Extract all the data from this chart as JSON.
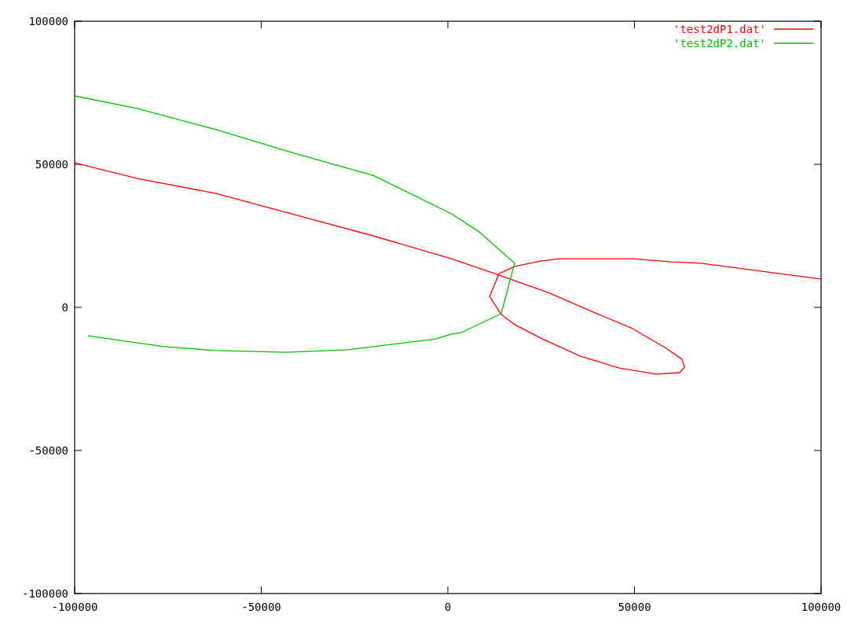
{
  "chart_data": {
    "type": "line",
    "xlim": [
      -100000,
      100000
    ],
    "ylim": [
      -100000,
      100000
    ],
    "xticks": [
      -100000,
      -50000,
      0,
      50000,
      100000
    ],
    "yticks": [
      -100000,
      -50000,
      0,
      50000,
      100000
    ],
    "legend": "top right",
    "marker": "none",
    "line_style": "solid",
    "series": [
      {
        "name": "'test2dP1.dat'",
        "color": "#ff0000",
        "x": [
          -100000,
          -83100,
          -62100,
          -41000,
          -20000,
          1000,
          13700,
          26900,
          38900,
          49500,
          58500,
          62700,
          63400,
          62100,
          55800,
          45900,
          35400,
          24800,
          17900,
          14300,
          11200,
          13700,
          17900,
          24800,
          29900,
          49500,
          60000,
          67800,
          100000
        ],
        "values": [
          50500,
          45000,
          39800,
          32400,
          25000,
          17000,
          11300,
          5200,
          -1600,
          -7400,
          -14300,
          -18100,
          -20900,
          -22800,
          -23300,
          -21200,
          -17000,
          -10700,
          -6000,
          -2500,
          3800,
          11800,
          14300,
          16200,
          17000,
          17000,
          15900,
          15400,
          9900
        ]
      },
      {
        "name": "'test2dP2.dat'",
        "color": "#00c000",
        "x": [
          -100000,
          -83100,
          -62100,
          -41000,
          -20000,
          1000,
          8400,
          17900,
          14300,
          3600,
          1000,
          -3200,
          -13000,
          -26900,
          -43200,
          -62100,
          -76200,
          -96400
        ],
        "values": [
          73900,
          69500,
          62100,
          53800,
          46100,
          32700,
          26400,
          15400,
          -2200,
          -8800,
          -9300,
          -11000,
          -12600,
          -14800,
          -15700,
          -15100,
          -13700,
          -9900
        ]
      }
    ]
  }
}
